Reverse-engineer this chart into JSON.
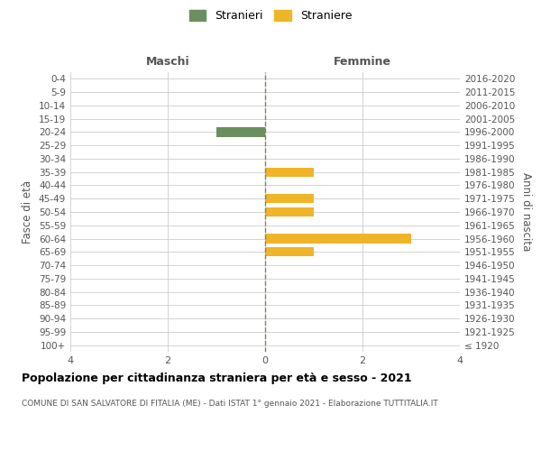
{
  "age_groups": [
    "100+",
    "95-99",
    "90-94",
    "85-89",
    "80-84",
    "75-79",
    "70-74",
    "65-69",
    "60-64",
    "55-59",
    "50-54",
    "45-49",
    "40-44",
    "35-39",
    "30-34",
    "25-29",
    "20-24",
    "15-19",
    "10-14",
    "5-9",
    "0-4"
  ],
  "birth_years": [
    "≤ 1920",
    "1921-1925",
    "1926-1930",
    "1931-1935",
    "1936-1940",
    "1941-1945",
    "1946-1950",
    "1951-1955",
    "1956-1960",
    "1961-1965",
    "1966-1970",
    "1971-1975",
    "1976-1980",
    "1981-1985",
    "1986-1990",
    "1991-1995",
    "1996-2000",
    "2001-2005",
    "2006-2010",
    "2011-2015",
    "2016-2020"
  ],
  "maschi_values": [
    0,
    0,
    0,
    0,
    0,
    0,
    0,
    0,
    0,
    0,
    0,
    0,
    0,
    0,
    0,
    0,
    1,
    0,
    0,
    0,
    0
  ],
  "femmine_values": [
    0,
    0,
    0,
    0,
    0,
    0,
    0,
    1,
    3,
    0,
    1,
    1,
    0,
    1,
    0,
    0,
    0,
    0,
    0,
    0,
    0
  ],
  "maschi_color": "#6b8e5e",
  "femmine_color": "#f0b429",
  "background_color": "#ffffff",
  "grid_color": "#cccccc",
  "center_line_color": "#808060",
  "title": "Popolazione per cittadinanza straniera per età e sesso - 2021",
  "subtitle": "COMUNE DI SAN SALVATORE DI FITALIA (ME) - Dati ISTAT 1° gennaio 2021 - Elaborazione TUTTITALIA.IT",
  "xlabel_left": "Maschi",
  "xlabel_right": "Femmine",
  "ylabel_left": "Fasce di età",
  "ylabel_right": "Anni di nascita",
  "legend_maschi": "Stranieri",
  "legend_femmine": "Straniere",
  "xlim": 4
}
